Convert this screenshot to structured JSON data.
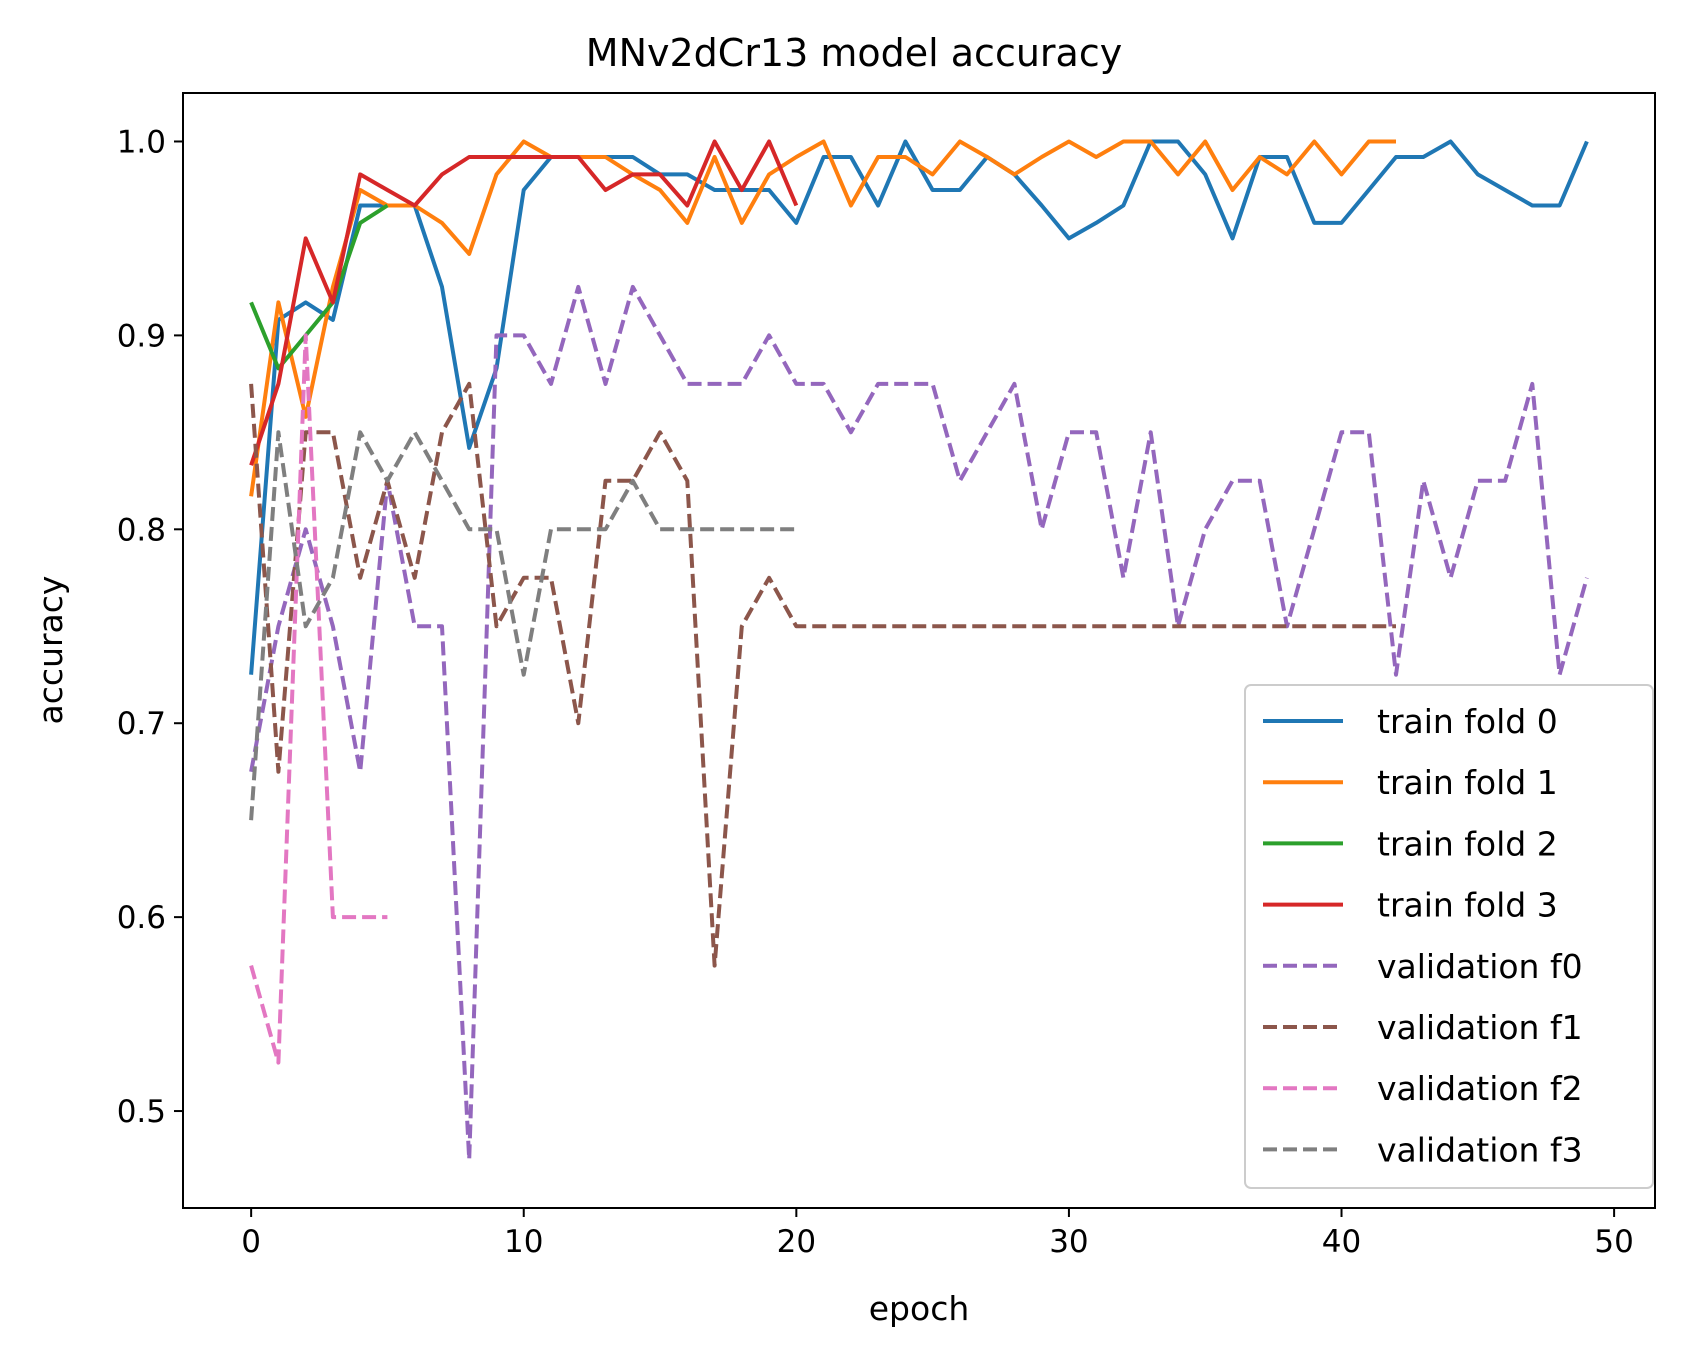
{
  "chart_data": {
    "type": "line",
    "title": "MNv2dCr13 model accuracy",
    "xlabel": "epoch",
    "ylabel": "accuracy",
    "xlim": [
      -2.5,
      51.5
    ],
    "ylim": [
      0.45,
      1.025
    ],
    "xticks": [
      0,
      10,
      20,
      30,
      40,
      50
    ],
    "yticks": [
      0.5,
      0.6,
      0.7,
      0.8,
      0.9,
      1.0
    ],
    "xtick_labels": [
      "0",
      "10",
      "20",
      "30",
      "40",
      "50"
    ],
    "ytick_labels": [
      "0.5",
      "0.6",
      "0.7",
      "0.8",
      "0.9",
      "1.0"
    ],
    "grid": false,
    "legend_position": "lower-right",
    "series": [
      {
        "name": "train fold 0",
        "color": "#1f77b4",
        "dash": "solid",
        "values": [
          0.725,
          0.908,
          0.917,
          0.908,
          0.967,
          0.967,
          0.967,
          0.925,
          0.842,
          0.883,
          0.975,
          0.992,
          0.992,
          0.992,
          0.992,
          0.983,
          0.983,
          0.975,
          0.975,
          0.975,
          0.958,
          0.992,
          0.992,
          0.967,
          1.0,
          0.975,
          0.975,
          0.992,
          0.983,
          0.967,
          0.95,
          0.958,
          0.967,
          1.0,
          1.0,
          0.983,
          0.95,
          0.992,
          0.992,
          0.958,
          0.958,
          0.975,
          0.992,
          0.992,
          1.0,
          0.983,
          0.975,
          0.967,
          0.967,
          1.0
        ]
      },
      {
        "name": "train fold 1",
        "color": "#ff7f0e",
        "dash": "solid",
        "values": [
          0.817,
          0.917,
          0.858,
          0.925,
          0.975,
          0.967,
          0.967,
          0.958,
          0.942,
          0.983,
          1.0,
          0.992,
          0.992,
          0.992,
          0.983,
          0.975,
          0.958,
          0.992,
          0.958,
          0.983,
          0.992,
          1.0,
          0.967,
          0.992,
          0.992,
          0.983,
          1.0,
          0.992,
          0.983,
          0.992,
          1.0,
          0.992,
          1.0,
          1.0,
          0.983,
          1.0,
          0.975,
          0.992,
          0.983,
          1.0,
          0.983,
          1.0,
          1.0
        ]
      },
      {
        "name": "train fold 2",
        "color": "#2ca02c",
        "dash": "solid",
        "values": [
          0.917,
          0.883,
          0.9,
          0.917,
          0.958,
          0.967
        ]
      },
      {
        "name": "train fold 3",
        "color": "#d62728",
        "dash": "solid",
        "values": [
          0.833,
          0.875,
          0.95,
          0.917,
          0.983,
          0.975,
          0.967,
          0.983,
          0.992,
          0.992,
          0.992,
          0.992,
          0.992,
          0.975,
          0.983,
          0.983,
          0.967,
          1.0,
          0.975,
          1.0,
          0.967
        ]
      },
      {
        "name": "validation f0",
        "color": "#9467bd",
        "dash": "dashed",
        "values": [
          0.675,
          0.75,
          0.8,
          0.75,
          0.675,
          0.825,
          0.75,
          0.75,
          0.475,
          0.9,
          0.9,
          0.875,
          0.925,
          0.875,
          0.925,
          0.9,
          0.875,
          0.875,
          0.875,
          0.9,
          0.875,
          0.875,
          0.85,
          0.875,
          0.875,
          0.875,
          0.825,
          0.85,
          0.875,
          0.8,
          0.85,
          0.85,
          0.775,
          0.85,
          0.75,
          0.8,
          0.825,
          0.825,
          0.75,
          0.8,
          0.85,
          0.85,
          0.725,
          0.825,
          0.775,
          0.825,
          0.825,
          0.875,
          0.725,
          0.775
        ]
      },
      {
        "name": "validation f1",
        "color": "#8c564b",
        "dash": "dashed",
        "values": [
          0.875,
          0.675,
          0.85,
          0.85,
          0.775,
          0.825,
          0.775,
          0.85,
          0.875,
          0.75,
          0.775,
          0.775,
          0.7,
          0.825,
          0.825,
          0.85,
          0.825,
          0.575,
          0.75,
          0.775,
          0.75,
          0.75,
          0.75,
          0.75,
          0.75,
          0.75,
          0.75,
          0.75,
          0.75,
          0.75,
          0.75,
          0.75,
          0.75,
          0.75,
          0.75,
          0.75,
          0.75,
          0.75,
          0.75,
          0.75,
          0.75,
          0.75,
          0.75
        ]
      },
      {
        "name": "validation f2",
        "color": "#e377c2",
        "dash": "dashed",
        "values": [
          0.575,
          0.525,
          0.9,
          0.6,
          0.6,
          0.6
        ]
      },
      {
        "name": "validation f3",
        "color": "#7f7f7f",
        "dash": "dashed",
        "values": [
          0.65,
          0.85,
          0.75,
          0.775,
          0.85,
          0.825,
          0.85,
          0.825,
          0.8,
          0.8,
          0.725,
          0.8,
          0.8,
          0.8,
          0.825,
          0.8,
          0.8,
          0.8,
          0.8,
          0.8,
          0.8
        ]
      }
    ]
  }
}
